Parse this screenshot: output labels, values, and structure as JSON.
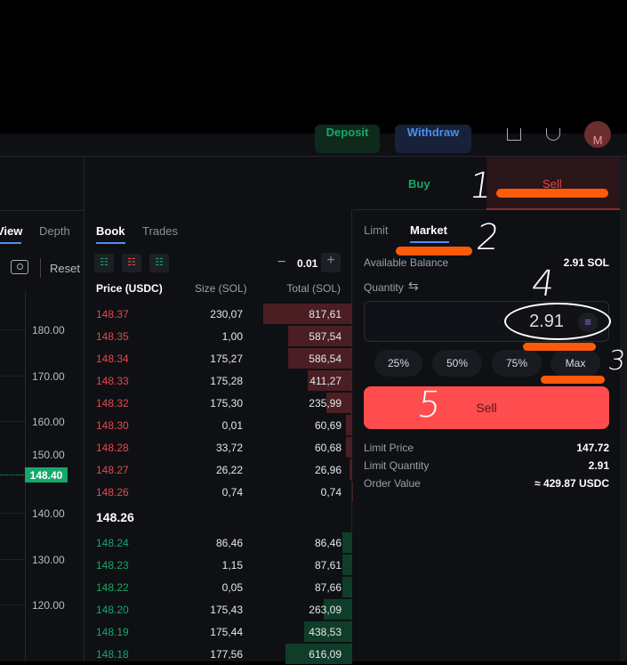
{
  "header": {
    "deposit": "Deposit",
    "withdraw": "Withdraw",
    "avatar": "M"
  },
  "chart": {
    "tabs": [
      "View",
      "Depth"
    ],
    "reset": "Reset",
    "axis": [
      "180.00",
      "170.00",
      "160.00",
      "150.00",
      "140.00",
      "130.00",
      "120.00"
    ],
    "last_price": "148.40",
    "colors": {
      "up": "#16a86a"
    }
  },
  "book": {
    "tabs": [
      "Book",
      "Trades"
    ],
    "tick": "0.01",
    "headers": [
      "Price (USDC)",
      "Size (SOL)",
      "Total (SOL)"
    ],
    "asks": [
      [
        "148.37",
        "230,07",
        "817,61"
      ],
      [
        "148.35",
        "1,00",
        "587,54"
      ],
      [
        "148.34",
        "175,27",
        "586,54"
      ],
      [
        "148.33",
        "175,28",
        "411,27"
      ],
      [
        "148.32",
        "175,30",
        "235,99"
      ],
      [
        "148.30",
        "0,01",
        "60,69"
      ],
      [
        "148.28",
        "33,72",
        "60,68"
      ],
      [
        "148.27",
        "26,22",
        "26,96"
      ],
      [
        "148.26",
        "0,74",
        "0,74"
      ]
    ],
    "mid": "148.26",
    "bids": [
      [
        "148.24",
        "86,46",
        "86,46"
      ],
      [
        "148.23",
        "1,15",
        "87,61"
      ],
      [
        "148.22",
        "0,05",
        "87,66"
      ],
      [
        "148.20",
        "175,43",
        "263,09"
      ],
      [
        "148.19",
        "175,44",
        "438,53"
      ],
      [
        "148.18",
        "177,56",
        "616,09"
      ]
    ],
    "colors": {
      "ask": "#e5484d",
      "bid": "#16a86a"
    }
  },
  "order": {
    "side_tabs": [
      "Buy",
      "Sell"
    ],
    "active_side": "Sell",
    "type_tabs": [
      "Limit",
      "Market"
    ],
    "active_type": "Market",
    "available_label": "Available Balance",
    "available_value": "2.91 SOL",
    "quantity_label": "Quantity",
    "quantity_value": "2.91",
    "percent_buttons": [
      "25%",
      "50%",
      "75%",
      "Max"
    ],
    "submit": "Sell",
    "summary": [
      [
        "Limit Price",
        "147.72"
      ],
      [
        "Limit Quantity",
        "2.91"
      ],
      [
        "Order Value",
        "≈ 429.87 USDC"
      ]
    ],
    "colors": {
      "sell": "#ff4d4f",
      "buy": "#16a86a"
    }
  },
  "annotations": [
    "1",
    "2",
    "3",
    "4",
    "5"
  ]
}
